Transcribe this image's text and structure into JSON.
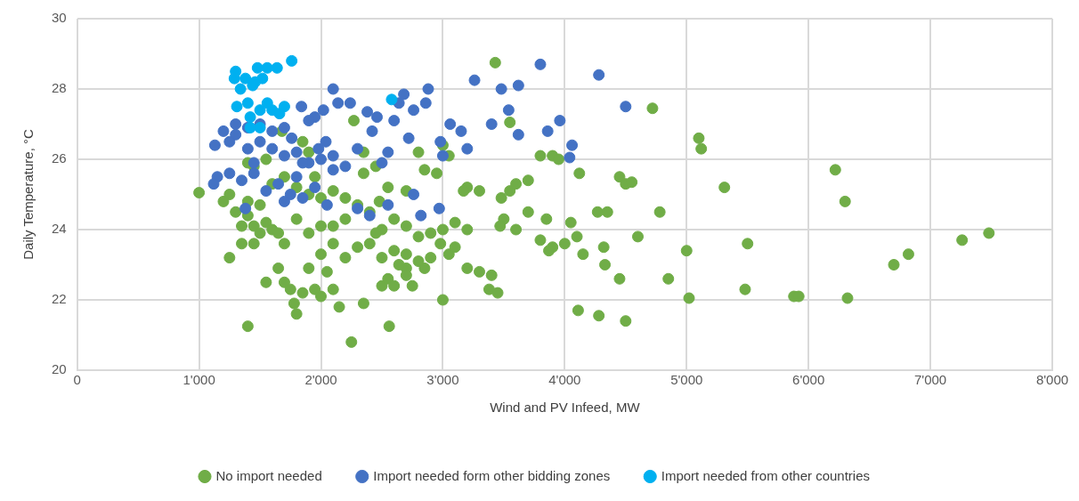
{
  "chart_data": {
    "type": "scatter",
    "xlabel": "Wind and PV Infeed, MW",
    "ylabel": "Daily Temperature, °C",
    "xlim": [
      0,
      8000
    ],
    "xticks": [
      0,
      {
        "value": 1000,
        "label": "1'000"
      },
      {
        "value": 2000,
        "label": "2'000"
      },
      {
        "value": 3000,
        "label": "3'000"
      },
      {
        "value": 4000,
        "label": "4'000"
      },
      {
        "value": 5000,
        "label": "5'000"
      },
      {
        "value": 6000,
        "label": "6'000"
      },
      {
        "value": 7000,
        "label": "7'000"
      },
      {
        "value": 8000,
        "label": "8'000"
      }
    ],
    "ylim": [
      20,
      30
    ],
    "yticks": [
      20,
      22,
      24,
      26,
      28,
      30
    ],
    "grid": true,
    "legend": "bottom",
    "marker": "circle",
    "series": [
      {
        "name": "No import needed",
        "color": "#70ad47",
        "x": [
          1000,
          1250,
          1200,
          1300,
          1350,
          1400,
          1450,
          1500,
          1550,
          1600,
          1650,
          1700,
          1250,
          1350,
          1450,
          1400,
          1550,
          1650,
          1700,
          1750,
          1780,
          1800,
          1850,
          1900,
          1950,
          2000,
          2050,
          2100,
          2150,
          2250,
          2350,
          2560,
          2500,
          2550,
          2600,
          2700,
          2750,
          2850,
          2000,
          2100,
          2200,
          2300,
          2400,
          2500,
          2600,
          2700,
          2800,
          2900,
          2980,
          3000,
          3050,
          3100,
          3200,
          3300,
          3380,
          3450,
          3400,
          1800,
          1900,
          2000,
          2100,
          2200,
          2300,
          2400,
          2500,
          2600,
          2700,
          2800,
          2900,
          3000,
          3100,
          3200,
          1600,
          1700,
          1800,
          1900,
          1950,
          2000,
          2100,
          2200,
          2350,
          2450,
          2550,
          2700,
          2850,
          2950,
          3050,
          3200,
          3300,
          3480,
          3550,
          3600,
          3700,
          3800,
          3900,
          3950,
          3500,
          3470,
          3600,
          3700,
          3800,
          3850,
          3900,
          3870,
          4000,
          4050,
          4100,
          4150,
          4120,
          4270,
          4350,
          4320,
          4330,
          4450,
          4450,
          4500,
          4550,
          4600,
          4780,
          4850,
          4720,
          5100,
          5120,
          5310,
          5500,
          5480,
          5000,
          5020,
          5880,
          5920,
          6220,
          6300,
          6320,
          6700,
          6820,
          7260,
          7480,
          4110,
          4280,
          4500,
          3430,
          3550,
          2270,
          1850,
          1680,
          1550,
          1450,
          1400,
          3000,
          2800,
          2350,
          2480,
          1400,
          1500,
          1900,
          2700,
          3170,
          2640,
          2450
        ],
        "values": [
          25.05,
          25.0,
          24.8,
          24.5,
          24.1,
          24.4,
          24.1,
          23.9,
          24.2,
          24.0,
          23.9,
          23.6,
          23.2,
          23.6,
          23.6,
          21.25,
          22.5,
          22.9,
          22.5,
          22.3,
          21.9,
          21.6,
          22.2,
          22.9,
          22.3,
          22.1,
          22.8,
          22.3,
          21.8,
          20.8,
          21.9,
          21.25,
          22.4,
          22.6,
          22.4,
          22.9,
          22.4,
          22.9,
          23.3,
          23.6,
          23.2,
          23.5,
          23.6,
          23.2,
          23.4,
          23.3,
          23.1,
          23.2,
          23.6,
          22.0,
          23.3,
          23.5,
          22.9,
          22.8,
          22.3,
          22.2,
          22.7,
          24.3,
          23.9,
          24.1,
          24.1,
          24.3,
          24.7,
          24.5,
          24.0,
          24.3,
          24.1,
          23.8,
          23.9,
          24.0,
          24.2,
          24.0,
          25.3,
          25.5,
          25.2,
          25.0,
          25.5,
          24.9,
          25.1,
          24.9,
          25.6,
          25.8,
          25.2,
          25.1,
          25.7,
          25.6,
          26.1,
          25.2,
          25.1,
          24.9,
          25.1,
          25.3,
          25.4,
          26.1,
          26.1,
          26.0,
          24.3,
          24.1,
          24.0,
          24.5,
          23.7,
          24.3,
          23.5,
          23.4,
          23.6,
          24.2,
          23.8,
          23.3,
          25.6,
          24.5,
          24.5,
          23.5,
          23.0,
          22.6,
          25.5,
          25.3,
          25.35,
          23.8,
          24.5,
          22.6,
          27.45,
          26.6,
          26.3,
          25.2,
          23.6,
          22.3,
          23.4,
          22.05,
          22.1,
          22.1,
          25.7,
          24.8,
          22.05,
          23.0,
          23.3,
          23.7,
          23.9,
          21.7,
          21.55,
          21.4,
          28.75,
          27.05,
          27.1,
          26.5,
          26.8,
          26.0,
          25.8,
          25.9,
          26.4,
          26.2,
          26.2,
          24.8,
          24.8,
          24.7,
          26.2,
          22.7,
          25.1,
          23.0,
          23.9
        ]
      },
      {
        "name": "Import needed form other bidding zones",
        "color": "#4472c4",
        "x": [
          4280,
          3800,
          3260,
          3480,
          3620,
          2100,
          1840,
          2020,
          2140,
          2240,
          1950,
          2380,
          2460,
          2640,
          2680,
          2880,
          2860,
          2600,
          2760,
          3060,
          3150,
          3540,
          3960,
          3860,
          4060,
          4500,
          3620,
          3400,
          2980,
          3200,
          3000,
          4040,
          2720,
          2550,
          2300,
          2420,
          2040,
          1200,
          1300,
          1130,
          1250,
          1400,
          1500,
          1600,
          1700,
          1800,
          1900,
          2000,
          2100,
          2200,
          1150,
          1120,
          1250,
          1350,
          1450,
          1550,
          1650,
          1750,
          1850,
          1950,
          2050,
          1800,
          1700,
          1900,
          1500,
          1400,
          2300,
          2400,
          2550,
          2820,
          2760,
          2970,
          1380,
          1700,
          1850,
          1760,
          1600,
          1300,
          1450,
          2500,
          2100,
          1980
        ],
        "values": [
          28.4,
          28.7,
          28.25,
          28.0,
          28.1,
          28.0,
          27.5,
          27.4,
          27.6,
          27.6,
          27.2,
          27.35,
          27.2,
          27.6,
          27.85,
          28.0,
          27.6,
          27.1,
          27.4,
          27.0,
          26.8,
          27.4,
          27.1,
          26.8,
          26.4,
          27.5,
          26.7,
          27.0,
          26.5,
          26.3,
          26.1,
          26.05,
          26.6,
          26.2,
          26.3,
          26.8,
          26.5,
          26.8,
          26.7,
          26.4,
          26.5,
          26.3,
          26.5,
          26.3,
          26.1,
          26.2,
          25.9,
          26.0,
          25.7,
          25.8,
          25.5,
          25.3,
          25.6,
          25.4,
          25.6,
          25.1,
          25.3,
          25.0,
          24.9,
          25.2,
          24.7,
          25.5,
          26.9,
          27.1,
          27.0,
          26.9,
          24.6,
          24.4,
          24.7,
          24.4,
          25.0,
          24.6,
          24.6,
          24.8,
          25.9,
          26.6,
          26.8,
          27.0,
          25.9,
          25.9,
          26.1,
          26.3
        ]
      },
      {
        "name": "Import needed from other countries",
        "color": "#00b0f0",
        "x": [
          1290,
          1300,
          1480,
          1560,
          1640,
          1760,
          1440,
          1400,
          1310,
          1420,
          1500,
          1560,
          1600,
          1660,
          1420,
          1500,
          2580,
          1340,
          1380,
          1520,
          1460,
          1700
        ],
        "values": [
          28.3,
          28.5,
          28.6,
          28.6,
          28.6,
          28.8,
          28.1,
          27.6,
          27.5,
          27.2,
          27.4,
          27.6,
          27.4,
          27.3,
          26.9,
          26.9,
          27.7,
          28.0,
          28.3,
          28.3,
          28.2,
          27.5
        ]
      }
    ]
  }
}
